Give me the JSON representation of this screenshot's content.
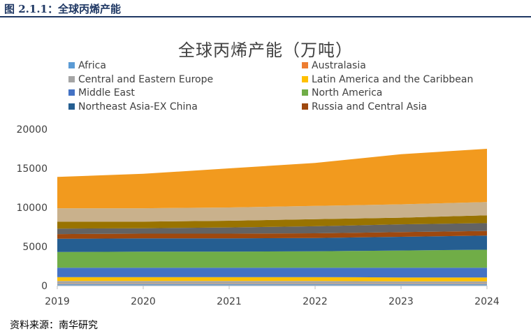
{
  "caption": "图 2.1.1：全球丙烯产能",
  "source": "资料来源：南华研究",
  "chart_data": {
    "type": "area",
    "stacked": true,
    "title": "全球丙烯产能（万吨）",
    "x": [
      "2019",
      "2020",
      "2021",
      "2022",
      "2023",
      "2024"
    ],
    "ylim": [
      0,
      20000
    ],
    "yticks": [
      "0",
      "5000",
      "10000",
      "15000",
      "20000"
    ],
    "grid": false,
    "legend_position": "top",
    "series": [
      {
        "name": "Africa",
        "color": "#5b9bd5",
        "values": [
          200,
          200,
          200,
          200,
          200,
          200
        ]
      },
      {
        "name": "Australasia",
        "color": "#ed7d31",
        "values": [
          50,
          50,
          50,
          50,
          50,
          50
        ]
      },
      {
        "name": "Central and Eastern Europe",
        "color": "#a5a5a5",
        "values": [
          350,
          350,
          350,
          350,
          300,
          300
        ]
      },
      {
        "name": "Latin America and the Caribbean",
        "color": "#ffc000",
        "values": [
          500,
          500,
          500,
          500,
          500,
          500
        ]
      },
      {
        "name": "Middle East",
        "color": "#4472c4",
        "values": [
          1200,
          1200,
          1200,
          1200,
          1250,
          1250
        ]
      },
      {
        "name": "North America",
        "color": "#70ad47",
        "values": [
          2000,
          2050,
          2050,
          2100,
          2200,
          2300
        ]
      },
      {
        "name": "Northeast Asia-EX China",
        "color": "#255e91",
        "values": [
          1700,
          1700,
          1700,
          1700,
          1750,
          1800
        ]
      },
      {
        "name": "Russia and Central Asia",
        "color": "#9e480e",
        "values": [
          600,
          600,
          600,
          600,
          600,
          600
        ]
      },
      {
        "name": "",
        "color": "#636363",
        "values": [
          700,
          700,
          800,
          900,
          1000,
          1000
        ]
      },
      {
        "name": "",
        "color": "#997300",
        "values": [
          900,
          850,
          850,
          900,
          850,
          1000
        ]
      },
      {
        "name": "",
        "color": "#c9b18c",
        "values": [
          1700,
          1700,
          1700,
          1700,
          1700,
          1700
        ]
      },
      {
        "name": "",
        "color": "#f29a1e",
        "values": [
          4000,
          4400,
          5000,
          5500,
          6400,
          6800
        ]
      }
    ]
  }
}
